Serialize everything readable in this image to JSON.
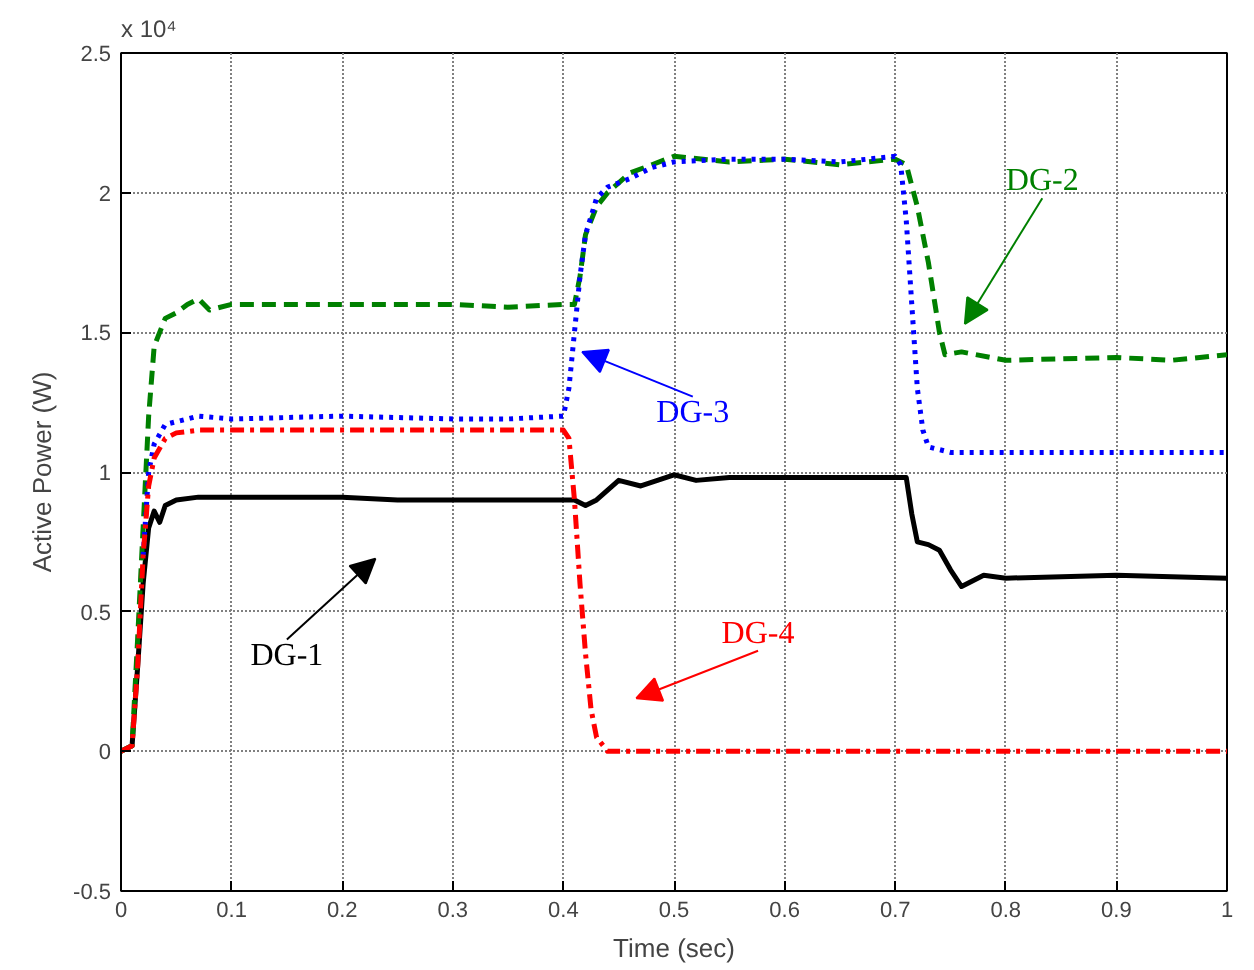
{
  "chart_data": {
    "type": "line",
    "xlabel": "Time (sec)",
    "ylabel": "Active Power (W)",
    "xlim": [
      0,
      1
    ],
    "ylim": [
      -0.5,
      2.5
    ],
    "xticks": [
      0,
      0.1,
      0.2,
      0.3,
      0.4,
      0.5,
      0.6,
      0.7,
      0.8,
      0.9,
      1
    ],
    "yticks": [
      -0.5,
      0,
      0.5,
      1,
      1.5,
      2,
      2.5
    ],
    "grid": true,
    "series": [
      {
        "color": "#000000",
        "line_style": "solid",
        "x": [
          0,
          0.01,
          0.015,
          0.02,
          0.025,
          0.03,
          0.035,
          0.04,
          0.05,
          0.07,
          0.1,
          0.15,
          0.2,
          0.25,
          0.3,
          0.35,
          0.4,
          0.41,
          0.42,
          0.43,
          0.45,
          0.47,
          0.5,
          0.52,
          0.55,
          0.6,
          0.65,
          0.7,
          0.71,
          0.715,
          0.72,
          0.73,
          0.74,
          0.75,
          0.76,
          0.78,
          0.8,
          0.9,
          1.0
        ],
        "values": [
          0,
          0.02,
          0.3,
          0.6,
          0.8,
          0.86,
          0.82,
          0.88,
          0.9,
          0.91,
          0.91,
          0.91,
          0.91,
          0.9,
          0.9,
          0.9,
          0.9,
          0.9,
          0.88,
          0.9,
          0.97,
          0.95,
          0.99,
          0.97,
          0.98,
          0.98,
          0.98,
          0.98,
          0.98,
          0.85,
          0.75,
          0.74,
          0.72,
          0.65,
          0.59,
          0.63,
          0.62,
          0.63,
          0.62
        ]
      },
      {
        "color": "#008000",
        "line_style": "dashed",
        "x": [
          0,
          0.01,
          0.015,
          0.02,
          0.025,
          0.03,
          0.04,
          0.05,
          0.06,
          0.07,
          0.08,
          0.1,
          0.2,
          0.3,
          0.35,
          0.4,
          0.41,
          0.415,
          0.42,
          0.43,
          0.44,
          0.46,
          0.48,
          0.5,
          0.55,
          0.6,
          0.65,
          0.7,
          0.71,
          0.72,
          0.73,
          0.74,
          0.745,
          0.76,
          0.8,
          0.9,
          0.95,
          1.0
        ],
        "values": [
          0,
          0.02,
          0.4,
          0.8,
          1.2,
          1.45,
          1.55,
          1.57,
          1.6,
          1.62,
          1.58,
          1.6,
          1.6,
          1.6,
          1.59,
          1.6,
          1.6,
          1.7,
          1.85,
          1.95,
          2.0,
          2.07,
          2.1,
          2.13,
          2.11,
          2.12,
          2.1,
          2.12,
          2.1,
          1.95,
          1.75,
          1.5,
          1.42,
          1.43,
          1.4,
          1.41,
          1.4,
          1.42
        ]
      },
      {
        "color": "#0000ff",
        "line_style": "dotted",
        "x": [
          0.02,
          0.025,
          0.03,
          0.04,
          0.05,
          0.07,
          0.1,
          0.2,
          0.3,
          0.35,
          0.4,
          0.405,
          0.41,
          0.415,
          0.42,
          0.43,
          0.44,
          0.46,
          0.48,
          0.5,
          0.55,
          0.6,
          0.65,
          0.7,
          0.705,
          0.71,
          0.715,
          0.72,
          0.725,
          0.73,
          0.75,
          0.8,
          0.9,
          1.0
        ],
        "values": [
          0.7,
          1.0,
          1.1,
          1.17,
          1.18,
          1.2,
          1.19,
          1.2,
          1.19,
          1.19,
          1.2,
          1.3,
          1.5,
          1.7,
          1.85,
          1.98,
          2.02,
          2.05,
          2.09,
          2.11,
          2.12,
          2.12,
          2.11,
          2.13,
          2.1,
          1.9,
          1.6,
          1.3,
          1.15,
          1.09,
          1.07,
          1.07,
          1.07,
          1.07
        ]
      },
      {
        "color": "#ff0000",
        "line_style": "dashdot",
        "x": [
          0,
          0.01,
          0.015,
          0.02,
          0.025,
          0.03,
          0.04,
          0.05,
          0.07,
          0.1,
          0.2,
          0.3,
          0.35,
          0.4,
          0.405,
          0.41,
          0.415,
          0.42,
          0.425,
          0.43,
          0.44,
          0.45,
          0.5,
          0.6,
          0.7,
          0.8,
          0.9,
          1.0
        ],
        "values": [
          0,
          0.02,
          0.3,
          0.7,
          0.95,
          1.05,
          1.12,
          1.14,
          1.15,
          1.15,
          1.15,
          1.15,
          1.15,
          1.15,
          1.12,
          0.9,
          0.6,
          0.35,
          0.15,
          0.05,
          0.0,
          0.0,
          0.0,
          0.0,
          0.0,
          0.0,
          0.0,
          0.0
        ]
      }
    ],
    "annotations": [
      "x 10⁴",
      "DG-1",
      {
        "text": "DG-3",
        "x": 0.417,
        "y": 1.43
      },
      "DG-2",
      "DG-4"
    ]
  }
}
